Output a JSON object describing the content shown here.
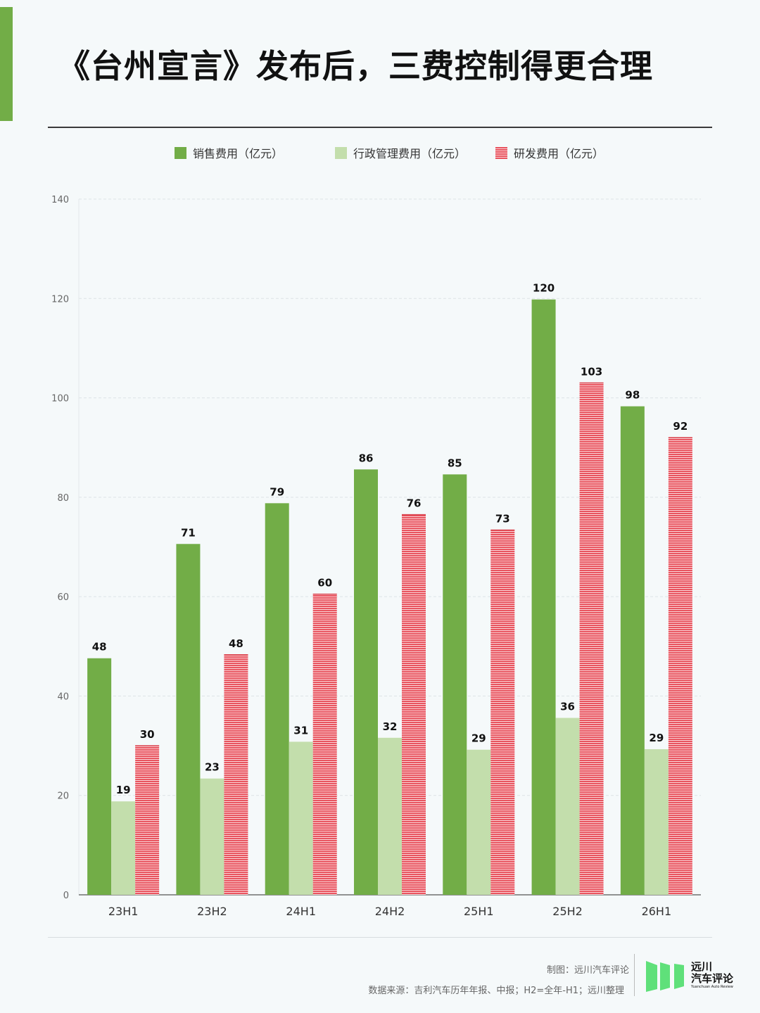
{
  "page": {
    "title": "《台州宣言》发布后，三费控制得更合理",
    "credit": "制图：远川汽车评论",
    "source": "数据来源：吉利汽车历年年报、中报；H2=全年-H1；远川整理",
    "brand": {
      "line1": "远川",
      "line2": "汽车评论",
      "tagline": "Yuanchuan Auto Review"
    }
  },
  "colors": {
    "accent": "#72ad47",
    "sales": "#72ad47",
    "admin": "#c3deac",
    "rd": "#e8545f",
    "rd_light": "#fbd5d8",
    "logo_green": "#5fe07a"
  },
  "chart_data": {
    "type": "bar",
    "categories": [
      "23H1",
      "23H2",
      "24H1",
      "24H2",
      "25H1",
      "25H2",
      "26H1"
    ],
    "series": [
      {
        "name": "销售费用（亿元）",
        "values": [
          47.6,
          70.6,
          78.8,
          85.6,
          84.6,
          119.8,
          98.3
        ],
        "labels": [
          "48",
          "71",
          "79",
          "86",
          "85",
          "120",
          "98"
        ]
      },
      {
        "name": "行政管理费用（亿元）",
        "values": [
          18.8,
          23.4,
          30.8,
          31.6,
          29.2,
          35.6,
          29.3
        ],
        "labels": [
          "19",
          "23",
          "31",
          "32",
          "29",
          "36",
          "29"
        ]
      },
      {
        "name": "研发费用（亿元）",
        "values": [
          30.0,
          48.3,
          60.5,
          76.5,
          73.4,
          103.0,
          92.0
        ],
        "labels": [
          "30",
          "48",
          "60",
          "76",
          "73",
          "103",
          "92"
        ]
      }
    ],
    "ylim": [
      0,
      140
    ],
    "yticks": [
      0,
      20,
      40,
      60,
      80,
      100,
      120,
      140
    ],
    "grid": true,
    "legend_position": "top-center"
  }
}
